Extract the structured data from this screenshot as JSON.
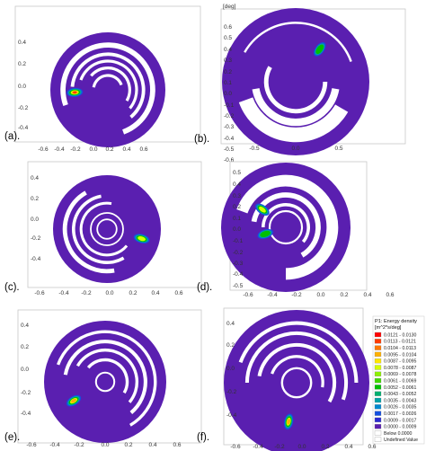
{
  "chart_data": [
    {
      "type": "heatmap",
      "label": "(a).",
      "xticks": [
        "-0.6",
        "-0.4",
        "-0.2",
        "0.0",
        "0.2",
        "0.4",
        "0.6"
      ],
      "yticks": [
        "0.4",
        "0.2",
        "0.0",
        "-0.2",
        "-0.4"
      ],
      "yunit": "",
      "xlim": [
        -0.65,
        0.68
      ],
      "ylim": [
        -0.5,
        0.5
      ],
      "peaks": [
        {
          "x": -0.25,
          "y": -0.02,
          "intensity": 1.0
        }
      ]
    },
    {
      "type": "heatmap",
      "label": "(b).",
      "xticks": [
        "-0.5",
        "0.0",
        "0.5"
      ],
      "yticks": [
        "0.6",
        "0.5",
        "0.4",
        "0.3",
        "0.2",
        "0.1",
        "0.0",
        "-0.1",
        "-0.2",
        "-0.3",
        "-0.4",
        "-0.5",
        "-0.6"
      ],
      "yunit": "[deg]",
      "xlim": [
        -0.8,
        0.8
      ],
      "ylim": [
        -0.65,
        0.65
      ],
      "peaks": [
        {
          "x": 0.22,
          "y": 0.33,
          "intensity": 0.55
        }
      ]
    },
    {
      "type": "heatmap",
      "label": "(c).",
      "xticks": [
        "-0.6",
        "-0.4",
        "-0.2",
        "0.0",
        "0.2",
        "0.4",
        "0.6"
      ],
      "yticks": [
        "0.4",
        "0.2",
        "0.0",
        "-0.2",
        "-0.4"
      ],
      "yunit": "",
      "xlim": [
        -0.65,
        0.68
      ],
      "ylim": [
        -0.5,
        0.5
      ],
      "peaks": [
        {
          "x": 0.28,
          "y": -0.08,
          "intensity": 0.65
        }
      ]
    },
    {
      "type": "heatmap",
      "label": "(d).",
      "xticks": [
        "-0.6",
        "-0.4",
        "-0.2",
        "0.0",
        "0.2",
        "0.4",
        "0.6"
      ],
      "yticks": [
        "0.5",
        "0.4",
        "0.3",
        "0.2",
        "0.1",
        "0.0",
        "-0.1",
        "-0.2",
        "-0.3",
        "-0.4",
        "-0.5"
      ],
      "yunit": "",
      "xlim": [
        -0.65,
        0.68
      ],
      "ylim": [
        -0.55,
        0.55
      ],
      "peaks": [
        {
          "x": -0.24,
          "y": 0.16,
          "intensity": 0.6
        },
        {
          "x": -0.21,
          "y": -0.06,
          "intensity": 0.55
        }
      ]
    },
    {
      "type": "heatmap",
      "label": "(e).",
      "xticks": [
        "-0.6",
        "-0.4",
        "-0.2",
        "0.0",
        "0.2",
        "0.4",
        "0.6"
      ],
      "yticks": [
        "0.4",
        "0.2",
        "0.0",
        "-0.2",
        "-0.4"
      ],
      "yunit": "",
      "xlim": [
        -0.65,
        0.68
      ],
      "ylim": [
        -0.5,
        0.5
      ],
      "peaks": [
        {
          "x": -0.24,
          "y": -0.15,
          "intensity": 0.85
        }
      ]
    },
    {
      "type": "heatmap",
      "label": "(f).",
      "xticks": [
        "-0.6",
        "-0.4",
        "-0.2",
        "0.0",
        "0.2",
        "0.4",
        "0.6"
      ],
      "yticks": [
        "0.4",
        "0.2",
        "0.0",
        "-0.2",
        "-0.4"
      ],
      "yunit": "",
      "xlim": [
        -0.65,
        0.68
      ],
      "ylim": [
        -0.5,
        0.5
      ],
      "peaks": [
        {
          "x": -0.08,
          "y": -0.3,
          "intensity": 0.85
        }
      ]
    }
  ],
  "legend": {
    "title": "P1: Energy density",
    "unit": "[m^2*s/deg]",
    "entries": [
      {
        "label": "0.0121 - 0.0130",
        "color": "#ff0000"
      },
      {
        "label": "0.0113 - 0.0121",
        "color": "#ff3b00"
      },
      {
        "label": "0.0104 - 0.0113",
        "color": "#ff7700"
      },
      {
        "label": "0.0095 - 0.0104",
        "color": "#ffb000"
      },
      {
        "label": "0.0087 - 0.0095",
        "color": "#ffe600"
      },
      {
        "label": "0.0078 - 0.0087",
        "color": "#d4ff00"
      },
      {
        "label": "0.0069 - 0.0078",
        "color": "#8cf000"
      },
      {
        "label": "0.0061 - 0.0069",
        "color": "#3ed800"
      },
      {
        "label": "0.0052 - 0.0061",
        "color": "#00c000"
      },
      {
        "label": "0.0043 - 0.0052",
        "color": "#00b070"
      },
      {
        "label": "0.0035 - 0.0043",
        "color": "#00a2a8"
      },
      {
        "label": "0.0026 - 0.0035",
        "color": "#0088d0"
      },
      {
        "label": "0.0017 - 0.0026",
        "color": "#1450e0"
      },
      {
        "label": "0.0009 - 0.0017",
        "color": "#2a2ad2"
      },
      {
        "label": "0.0000 - 0.0009",
        "color": "#5a1fb0"
      },
      {
        "label": "Below   0.0000",
        "color": "#ffffff"
      },
      {
        "label": "Undefined Value",
        "color": "#ffffff"
      }
    ]
  }
}
